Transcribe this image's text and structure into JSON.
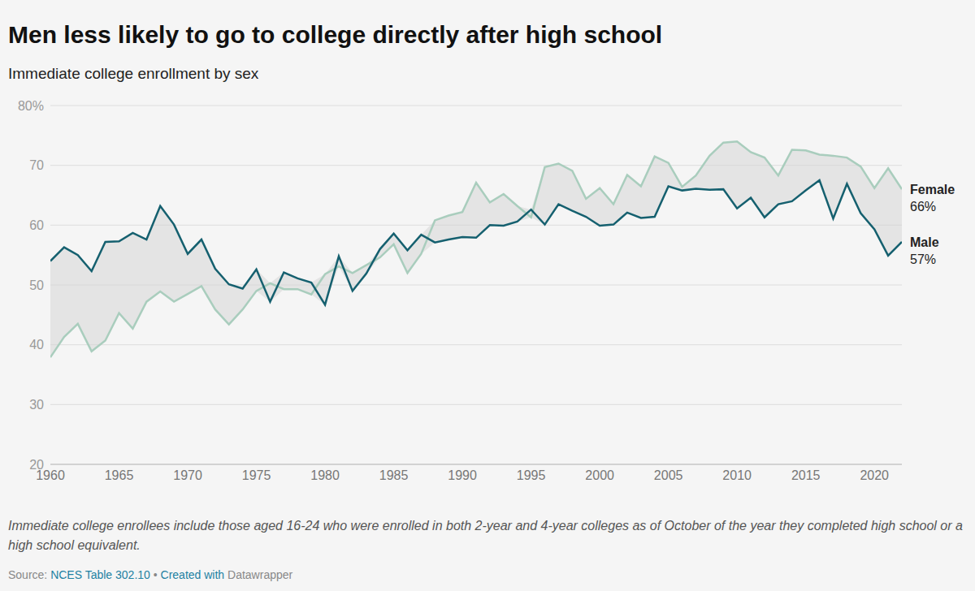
{
  "chart_data": {
    "type": "line",
    "title": "Men less likely to go to college directly after high school",
    "subtitle": "Immediate college enrollment by sex",
    "note": "Immediate college enrollees include those aged 16-24 who were enrolled in both 2-year and 4-year colleges as of October of the year they completed high school or a high school equivalent.",
    "source": [
      "Source:",
      "NCES Table 302.10",
      "•",
      "Created with",
      "Datawrapper"
    ],
    "x": [
      1960,
      1961,
      1962,
      1963,
      1964,
      1965,
      1966,
      1967,
      1968,
      1969,
      1970,
      1971,
      1972,
      1973,
      1974,
      1975,
      1976,
      1977,
      1978,
      1979,
      1980,
      1981,
      1982,
      1983,
      1984,
      1985,
      1986,
      1987,
      1988,
      1989,
      1990,
      1991,
      1992,
      1993,
      1994,
      1995,
      1996,
      1997,
      1998,
      1999,
      2000,
      2001,
      2002,
      2003,
      2004,
      2005,
      2006,
      2007,
      2008,
      2009,
      2010,
      2011,
      2012,
      2013,
      2014,
      2015,
      2016,
      2017,
      2018,
      2019,
      2020,
      2021,
      2022
    ],
    "series": [
      {
        "name": "Female",
        "color": "#a9cdbd",
        "values": [
          37.9,
          41.3,
          43.5,
          38.9,
          40.7,
          45.3,
          42.7,
          47.2,
          48.9,
          47.2,
          48.5,
          49.8,
          45.9,
          43.4,
          45.9,
          49.0,
          50.3,
          49.3,
          49.3,
          48.4,
          51.8,
          53.1,
          52.0,
          53.3,
          54.6,
          56.8,
          52.0,
          55.2,
          60.8,
          61.6,
          62.2,
          67.1,
          63.8,
          65.2,
          63.2,
          61.3,
          69.7,
          70.3,
          69.1,
          64.4,
          66.2,
          63.5,
          68.4,
          66.5,
          71.5,
          70.4,
          66.4,
          68.3,
          71.6,
          73.8,
          74.0,
          72.2,
          71.3,
          68.3,
          72.6,
          72.5,
          71.8,
          71.6,
          71.3,
          69.8,
          66.2,
          69.5,
          66.0
        ],
        "value_labels": [
          null,
          null,
          null,
          null,
          null,
          null,
          null,
          null,
          null,
          null,
          null,
          null,
          null,
          null,
          null,
          null,
          null,
          null,
          null,
          null,
          null,
          null,
          null,
          null,
          null,
          null,
          null,
          null,
          null,
          null,
          null,
          null,
          null,
          null,
          null,
          null,
          null,
          null,
          null,
          null,
          null,
          null,
          null,
          null,
          null,
          null,
          null,
          null,
          null,
          null,
          null,
          null,
          null,
          null,
          null,
          null,
          null,
          null,
          null,
          null,
          null,
          null,
          "66%"
        ]
      },
      {
        "name": "Male",
        "color": "#15606f",
        "values": [
          54.0,
          56.3,
          55.0,
          52.3,
          57.2,
          57.3,
          58.7,
          57.6,
          63.2,
          60.1,
          55.2,
          57.6,
          52.7,
          50.1,
          49.4,
          52.6,
          47.2,
          52.1,
          51.1,
          50.4,
          46.7,
          54.8,
          49.0,
          51.9,
          56.0,
          58.6,
          55.8,
          58.4,
          57.1,
          57.6,
          58.0,
          57.9,
          60.0,
          59.9,
          60.6,
          62.6,
          60.1,
          63.5,
          62.4,
          61.4,
          59.9,
          60.1,
          62.1,
          61.2,
          61.4,
          66.5,
          65.8,
          66.1,
          65.9,
          66.0,
          62.8,
          64.6,
          61.3,
          63.5,
          64.0,
          65.8,
          67.5,
          61.1,
          66.9,
          62.0,
          59.3,
          54.9,
          57.2
        ],
        "value_labels": [
          null,
          null,
          null,
          null,
          null,
          null,
          null,
          null,
          null,
          null,
          null,
          null,
          null,
          null,
          null,
          null,
          null,
          null,
          null,
          null,
          null,
          null,
          null,
          null,
          null,
          null,
          null,
          null,
          null,
          null,
          null,
          null,
          null,
          null,
          null,
          null,
          null,
          null,
          null,
          null,
          null,
          null,
          null,
          null,
          null,
          null,
          null,
          null,
          null,
          null,
          null,
          null,
          null,
          null,
          null,
          null,
          null,
          null,
          null,
          null,
          null,
          null,
          "57%"
        ]
      }
    ],
    "xlim": [
      1960,
      2022
    ],
    "xticks": [
      1960,
      1965,
      1970,
      1975,
      1980,
      1985,
      1990,
      1995,
      2000,
      2005,
      2010,
      2015,
      2020
    ],
    "ylim": [
      20,
      80
    ],
    "yticks": [
      20,
      30,
      40,
      50,
      60,
      70,
      {
        "value": 80,
        "label": "80%"
      }
    ],
    "grid": true,
    "data_labels": true
  }
}
